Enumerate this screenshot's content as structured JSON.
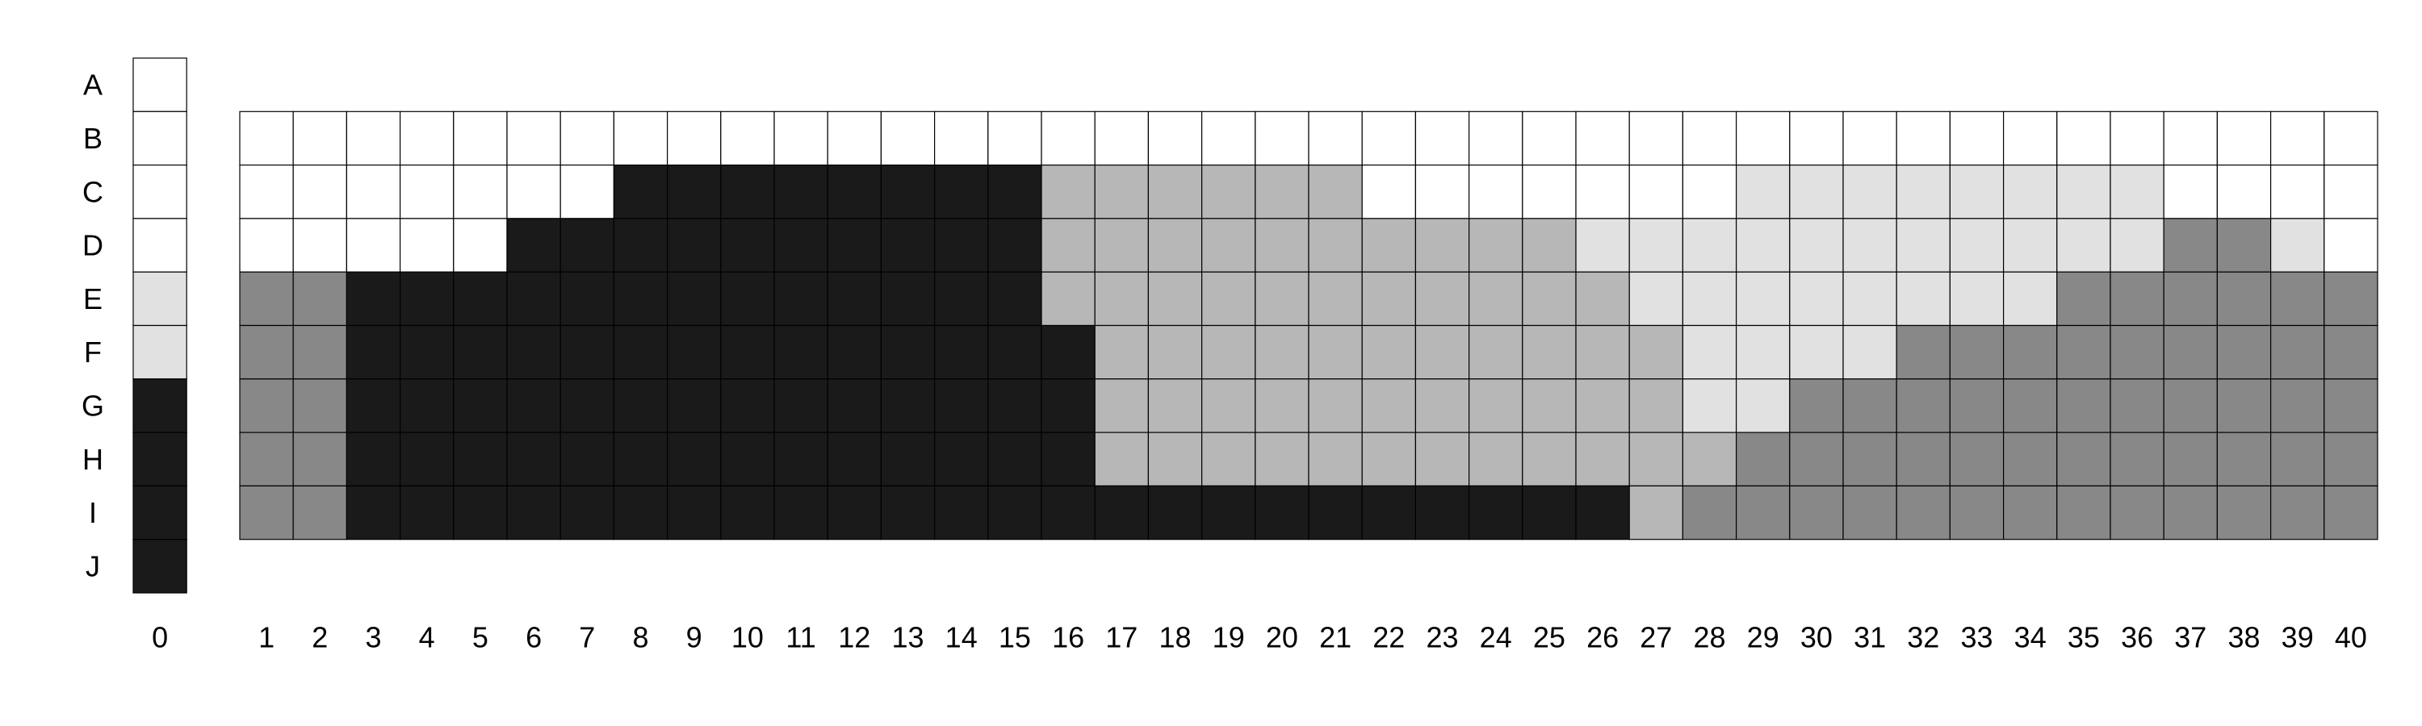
{
  "chart_data": {
    "type": "heatmap",
    "rows": [
      "A",
      "B",
      "C",
      "D",
      "E",
      "F",
      "G",
      "H",
      "I",
      "J"
    ],
    "columns": [
      "0",
      "1",
      "2",
      "3",
      "4",
      "5",
      "6",
      "7",
      "8",
      "9",
      "10",
      "11",
      "12",
      "13",
      "14",
      "15",
      "16",
      "17",
      "18",
      "19",
      "20",
      "21",
      "22",
      "23",
      "24",
      "25",
      "26",
      "27",
      "28",
      "29",
      "30",
      "31",
      "32",
      "33",
      "34",
      "35",
      "36",
      "37",
      "38",
      "39",
      "40"
    ],
    "palette": [
      "#ffffff",
      "#e1e1e1",
      "#b7b7b7",
      "#888888",
      "#1a1a1a"
    ],
    "column_0": [
      0,
      0,
      0,
      0,
      1,
      1,
      4,
      4,
      4,
      4
    ],
    "grid_rows": [
      "B",
      "C",
      "D",
      "E",
      "F",
      "G",
      "H",
      "I"
    ],
    "grid": [
      [
        0,
        0,
        0,
        0,
        0,
        0,
        0,
        0,
        0,
        0,
        0,
        0,
        0,
        0,
        0,
        0,
        0,
        0,
        0,
        0,
        0,
        0,
        0,
        0,
        0,
        0,
        0,
        0,
        0,
        0,
        0,
        0,
        0,
        0,
        0,
        0,
        0,
        0,
        0,
        0
      ],
      [
        0,
        0,
        0,
        0,
        0,
        0,
        0,
        4,
        4,
        4,
        4,
        4,
        4,
        4,
        4,
        2,
        2,
        2,
        2,
        2,
        2,
        0,
        0,
        0,
        0,
        0,
        0,
        0,
        1,
        1,
        1,
        1,
        1,
        1,
        1,
        1,
        0,
        0,
        0,
        0
      ],
      [
        0,
        0,
        0,
        0,
        0,
        4,
        4,
        4,
        4,
        4,
        4,
        4,
        4,
        4,
        4,
        2,
        2,
        2,
        2,
        2,
        2,
        2,
        2,
        2,
        2,
        1,
        1,
        1,
        1,
        1,
        1,
        1,
        1,
        1,
        1,
        1,
        3,
        3,
        1,
        0
      ],
      [
        3,
        3,
        4,
        4,
        4,
        4,
        4,
        4,
        4,
        4,
        4,
        4,
        4,
        4,
        4,
        2,
        2,
        2,
        2,
        2,
        2,
        2,
        2,
        2,
        2,
        2,
        1,
        1,
        1,
        1,
        1,
        1,
        1,
        1,
        3,
        3,
        3,
        3,
        3,
        3
      ],
      [
        3,
        3,
        4,
        4,
        4,
        4,
        4,
        4,
        4,
        4,
        4,
        4,
        4,
        4,
        4,
        4,
        2,
        2,
        2,
        2,
        2,
        2,
        2,
        2,
        2,
        2,
        2,
        1,
        1,
        1,
        1,
        3,
        3,
        3,
        3,
        3,
        3,
        3,
        3,
        3
      ],
      [
        3,
        3,
        4,
        4,
        4,
        4,
        4,
        4,
        4,
        4,
        4,
        4,
        4,
        4,
        4,
        4,
        2,
        2,
        2,
        2,
        2,
        2,
        2,
        2,
        2,
        2,
        2,
        1,
        1,
        3,
        3,
        3,
        3,
        3,
        3,
        3,
        3,
        3,
        3,
        3
      ],
      [
        3,
        3,
        4,
        4,
        4,
        4,
        4,
        4,
        4,
        4,
        4,
        4,
        4,
        4,
        4,
        4,
        2,
        2,
        2,
        2,
        2,
        2,
        2,
        2,
        2,
        2,
        2,
        2,
        3,
        3,
        3,
        3,
        3,
        3,
        3,
        3,
        3,
        3,
        3,
        3
      ],
      [
        3,
        3,
        4,
        4,
        4,
        4,
        4,
        4,
        4,
        4,
        4,
        4,
        4,
        4,
        4,
        4,
        4,
        4,
        4,
        4,
        4,
        4,
        4,
        4,
        4,
        4,
        2,
        3,
        3,
        3,
        3,
        3,
        3,
        3,
        3,
        3,
        3,
        3,
        3,
        3
      ]
    ]
  }
}
